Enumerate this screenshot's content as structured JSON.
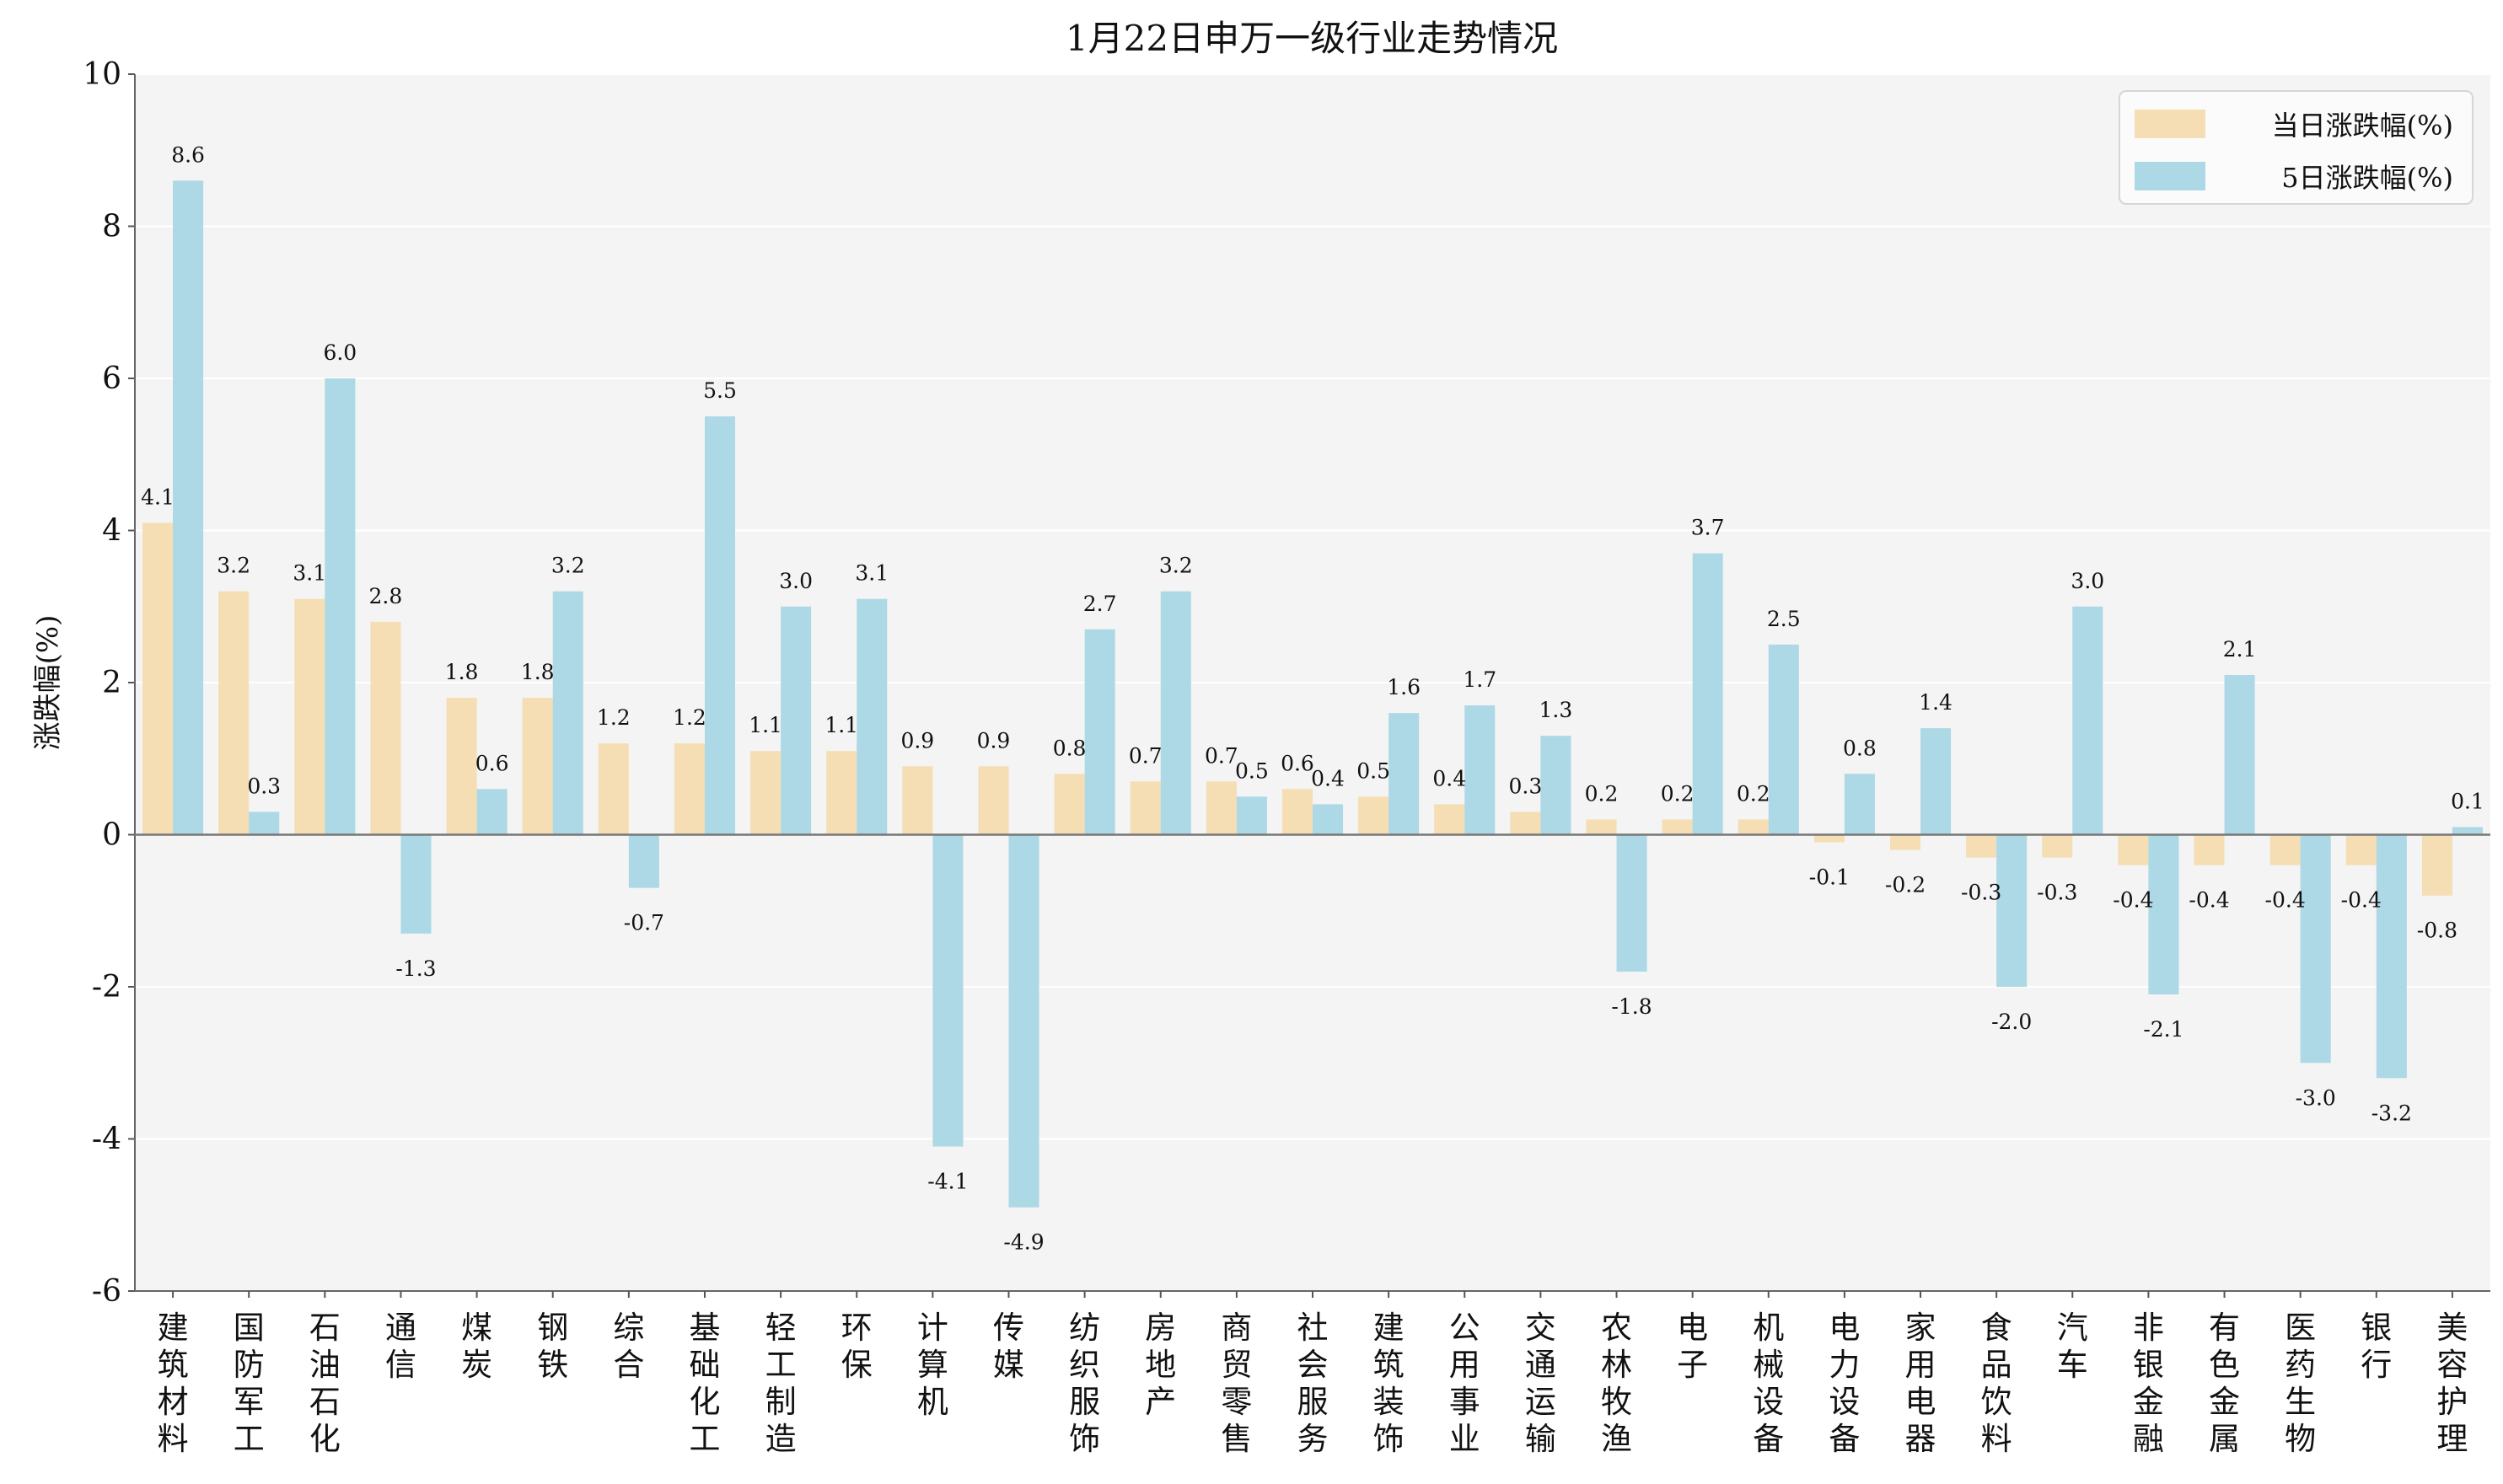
{
  "chart_data": {
    "type": "bar",
    "title": "1月22日申万一级行业走势情况",
    "xlabel": "",
    "ylabel": "涨跌幅(%)",
    "ylim": [
      -6,
      10
    ],
    "yticks": [
      -6,
      -4,
      -2,
      0,
      2,
      4,
      6,
      8,
      10
    ],
    "grid": true,
    "legend_position": "top-right",
    "categories": [
      "建筑材料",
      "国防军工",
      "石油石化",
      "通信",
      "煤炭",
      "钢铁",
      "综合",
      "基础化工",
      "轻工制造",
      "环保",
      "计算机",
      "传媒",
      "纺织服饰",
      "房地产",
      "商贸零售",
      "社会服务",
      "建筑装饰",
      "公用事业",
      "交通运输",
      "农林牧渔",
      "电子",
      "机械设备",
      "电力设备",
      "家用电器",
      "食品饮料",
      "汽车",
      "非银金融",
      "有色金属",
      "医药生物",
      "银行",
      "美容护理"
    ],
    "series": [
      {
        "name": "当日涨跌幅(%)",
        "color": "#f5deb3",
        "values": [
          4.1,
          3.2,
          3.1,
          2.8,
          1.8,
          1.8,
          1.2,
          1.2,
          1.1,
          1.1,
          0.9,
          0.9,
          0.8,
          0.7,
          0.7,
          0.6,
          0.5,
          0.4,
          0.3,
          0.2,
          0.2,
          0.2,
          -0.1,
          -0.2,
          -0.3,
          -0.3,
          -0.4,
          -0.4,
          -0.4,
          -0.4,
          -0.8
        ]
      },
      {
        "name": "5日涨跌幅(%)",
        "color": "#add8e6",
        "values": [
          8.6,
          0.3,
          6.0,
          -1.3,
          0.6,
          3.2,
          -0.7,
          5.5,
          3.0,
          3.1,
          -4.1,
          -4.9,
          2.7,
          3.2,
          0.5,
          0.4,
          1.6,
          1.7,
          1.3,
          -1.8,
          3.7,
          2.5,
          0.8,
          1.4,
          -2.0,
          3.0,
          -2.1,
          2.1,
          -3.0,
          -3.2,
          0.1
        ]
      }
    ]
  }
}
